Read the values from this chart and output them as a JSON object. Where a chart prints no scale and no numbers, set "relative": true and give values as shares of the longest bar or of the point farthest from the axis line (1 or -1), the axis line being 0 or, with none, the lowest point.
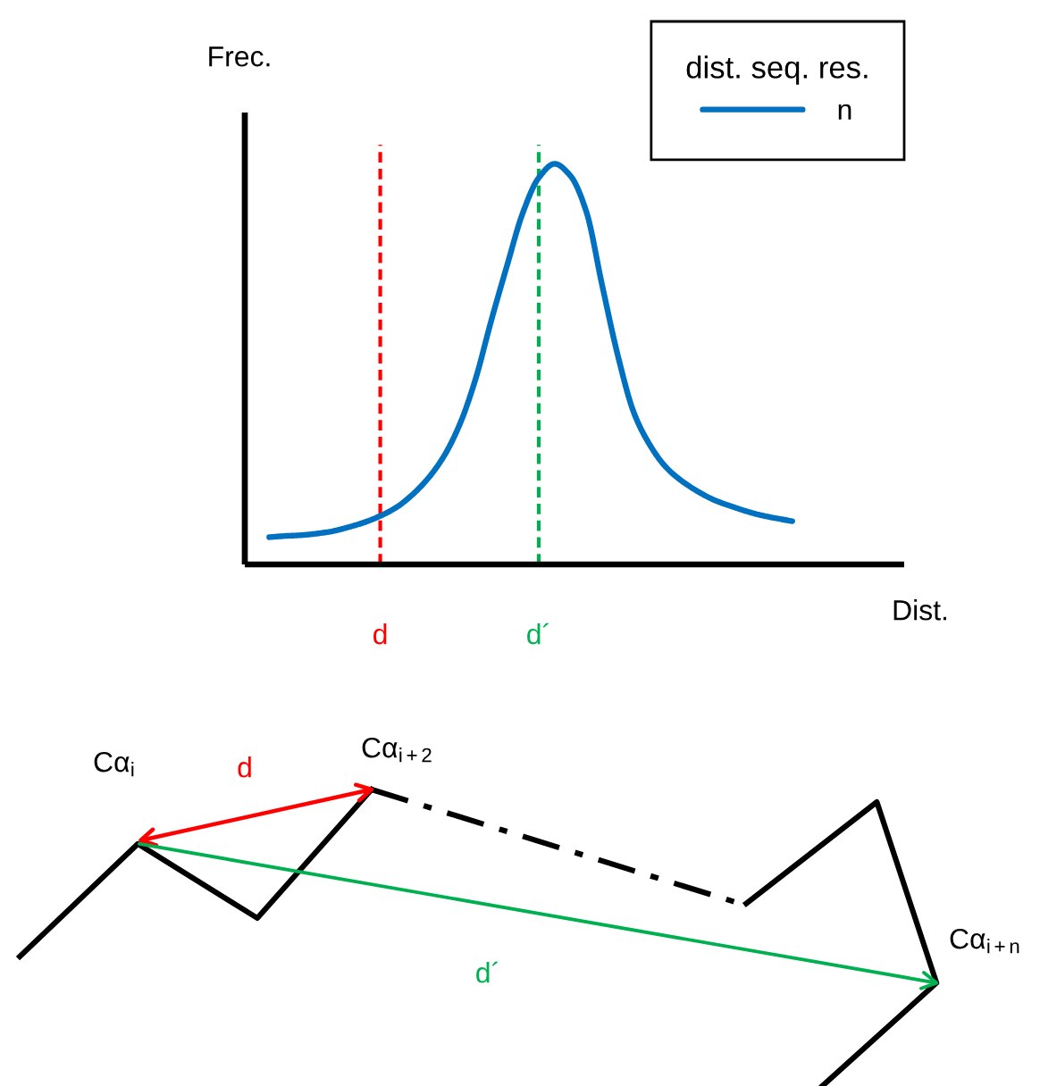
{
  "chart_data": [
    {
      "type": "line",
      "ylabel": "Frec.",
      "xlabel": "Dist.",
      "legend_title": "dist. seq. res.",
      "relative": true,
      "tick_labels": "x",
      "legend": "top right",
      "categories": [
        null,
        null,
        null,
        null,
        null,
        null,
        null,
        "d",
        null,
        null,
        null,
        null,
        null,
        null,
        null,
        null,
        null,
        "d´",
        null,
        null,
        null,
        null,
        null,
        null,
        null,
        null,
        null,
        null,
        null,
        null,
        null,
        null,
        null,
        null
      ],
      "series": [
        {
          "name": "n",
          "color": "#0070c0",
          "values": [
            0.068,
            0.071,
            0.073,
            0.077,
            0.083,
            0.093,
            0.105,
            0.121,
            0.142,
            0.173,
            0.214,
            0.269,
            0.348,
            0.461,
            0.608,
            0.746,
            0.878,
            0.965,
            1,
            0.97,
            0.881,
            0.697,
            0.52,
            0.379,
            0.299,
            0.244,
            0.209,
            0.183,
            0.162,
            0.147,
            0.134,
            0.123,
            0.115,
            0.108
          ]
        }
      ],
      "ref_lines": [
        {
          "axis": "x",
          "value": "d",
          "color": "#ff0000",
          "line_style": "dashed"
        },
        {
          "axis": "x",
          "value": "d´",
          "color": "#00b050",
          "line_style": "dashed"
        }
      ]
    },
    {
      "type": "other",
      "annotations": [
        "Cα$_{i}$",
        "d",
        "Cα$_{i+2}$",
        "d´",
        "Cα$_{i+n}$"
      ]
    }
  ]
}
